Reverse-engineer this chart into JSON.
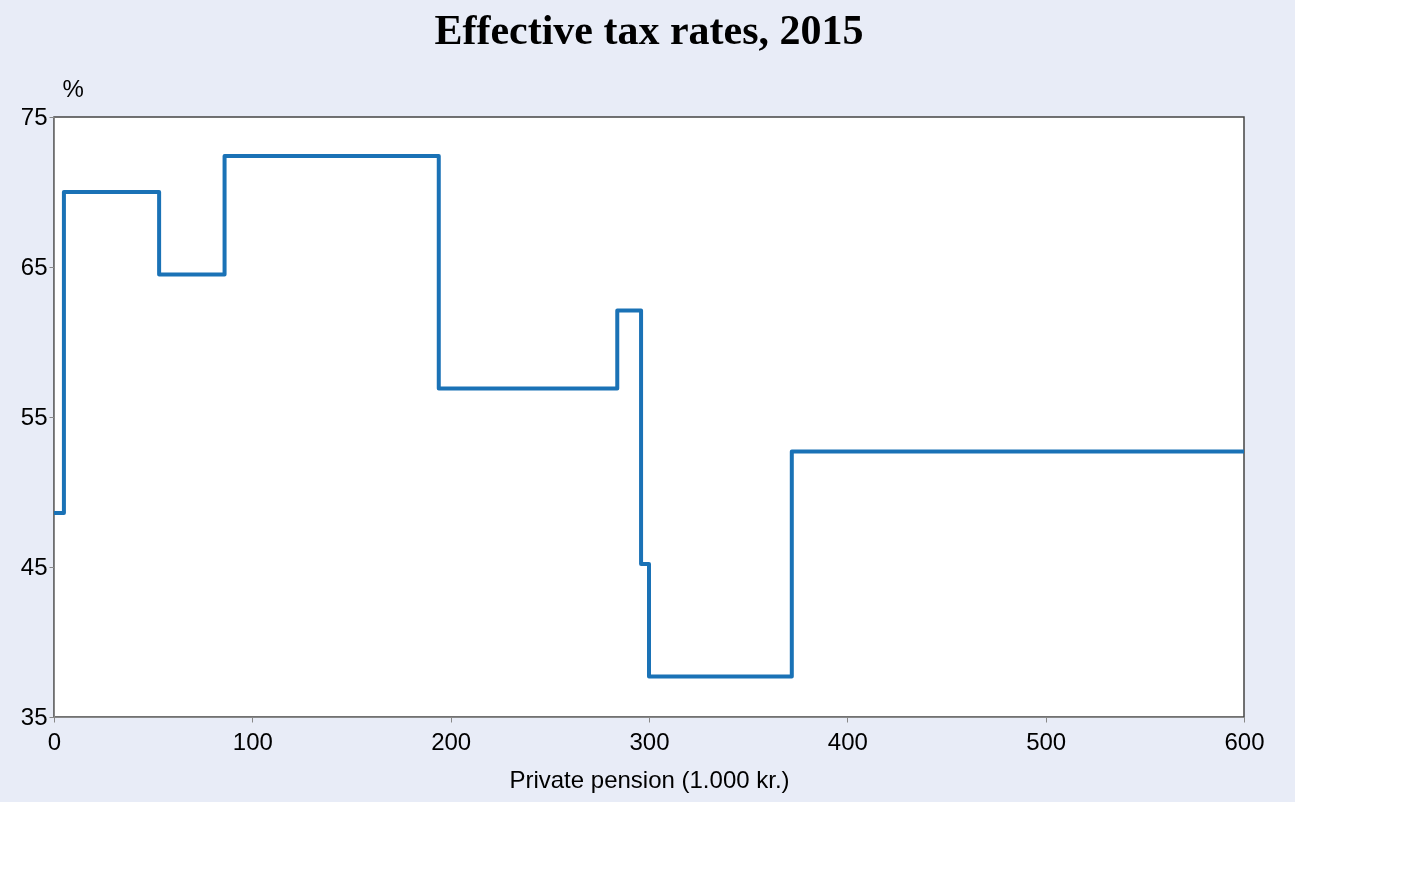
{
  "chart_data": {
    "type": "step",
    "title": "Effective tax rates, 2015",
    "xlabel": "Private pension (1.000 kr.)",
    "ylabel": "%",
    "x": [
      0,
      5,
      53,
      86,
      194,
      284,
      296,
      300,
      372,
      600
    ],
    "series": [
      {
        "color": "#1a72b6",
        "values": [
          48.6,
          70,
          64.5,
          72.4,
          56.9,
          62.1,
          45.2,
          37.7,
          52.7,
          52.7
        ]
      }
    ],
    "xlim": [
      0,
      600
    ],
    "xticks": [
      0,
      100,
      200,
      300,
      400,
      500,
      600
    ],
    "ylim": [
      35,
      75
    ],
    "yticks": [
      35,
      45,
      55,
      65,
      75
    ],
    "grid": false,
    "line_style": "solid",
    "marker": "none"
  }
}
